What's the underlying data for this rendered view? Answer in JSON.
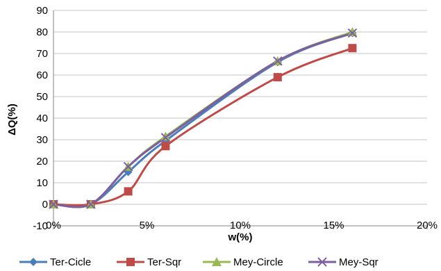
{
  "chart_data": {
    "type": "line",
    "xlabel": "w(%)",
    "ylabel": "ΔQ(%)",
    "xlim": [
      0,
      0.2
    ],
    "ylim": [
      -10,
      90
    ],
    "grid": "horizontal",
    "legend_position": "bottom",
    "x_ticks": [
      {
        "value": 0,
        "label": "0%"
      },
      {
        "value": 0.05,
        "label": "5%"
      },
      {
        "value": 0.1,
        "label": "10%"
      },
      {
        "value": 0.15,
        "label": "15%"
      },
      {
        "value": 0.2,
        "label": "20%"
      }
    ],
    "y_ticks": [
      {
        "value": -10,
        "label": "-10"
      },
      {
        "value": 0,
        "label": "0"
      },
      {
        "value": 10,
        "label": "10"
      },
      {
        "value": 20,
        "label": "20"
      },
      {
        "value": 30,
        "label": "30"
      },
      {
        "value": 40,
        "label": "40"
      },
      {
        "value": 50,
        "label": "50"
      },
      {
        "value": 60,
        "label": "60"
      },
      {
        "value": 70,
        "label": "70"
      },
      {
        "value": 80,
        "label": "80"
      },
      {
        "value": 90,
        "label": "90"
      }
    ],
    "x": [
      0,
      0.02,
      0.04,
      0.06,
      0.12,
      0.16
    ],
    "series": [
      {
        "name": "Ter-Cicle",
        "color": "#4a7ebb",
        "marker": "diamond",
        "values": [
          0,
          0,
          15,
          29.5,
          66,
          79.5
        ]
      },
      {
        "name": "Ter-Sqr",
        "color": "#be4b48",
        "marker": "square",
        "values": [
          0,
          0,
          6,
          27,
          59,
          72.5
        ]
      },
      {
        "name": "Mey-Circle",
        "color": "#98b954",
        "marker": "triangle",
        "values": [
          0,
          0,
          17.5,
          31.5,
          66.5,
          80
        ]
      },
      {
        "name": "Mey-Sqr",
        "color": "#7d5fa0",
        "marker": "x",
        "values": [
          0,
          0,
          17.5,
          31,
          66.5,
          79.5
        ]
      }
    ]
  }
}
